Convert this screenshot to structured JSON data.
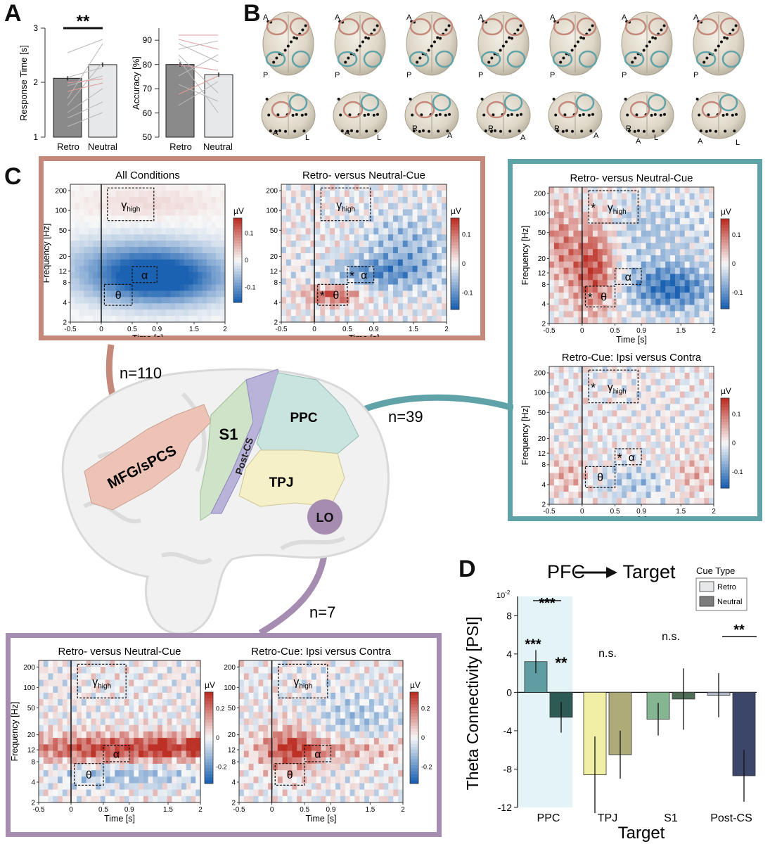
{
  "panel_labels": {
    "a": "A",
    "b": "B",
    "c": "C",
    "d": "D"
  },
  "colors": {
    "frontal": "#c4897b",
    "parietal": "#5fa3a8",
    "lo": "#a58cb0",
    "retro_bar": "#8a8a8a",
    "neutral_bar": "#e6e8ea"
  },
  "panel_a": {
    "rt": {
      "ylabel": "Response Time [s]",
      "yticks": [
        "1",
        "2",
        "3"
      ],
      "categories": [
        "Retro",
        "Neutral"
      ],
      "significance": "**"
    },
    "acc": {
      "ylabel": "Accuracy [%]",
      "yticks": [
        "50",
        "60",
        "70",
        "80",
        "90"
      ],
      "categories": [
        "Retro",
        "Neutral"
      ]
    }
  },
  "panel_b": {
    "top_labels": [
      "A",
      "P",
      "A",
      "P",
      "A",
      "P",
      "A",
      "P",
      "A",
      "P",
      "A",
      "P",
      "A",
      "P"
    ],
    "bottom_labels": [
      "A",
      "L",
      "A",
      "L",
      "R",
      "A",
      "R",
      "A",
      "R",
      "A",
      "R",
      "A",
      "L",
      "A",
      "L"
    ]
  },
  "tf_common": {
    "ylabel": "Frequency [Hz]",
    "xlabel": "Time [s]",
    "yticks": [
      "200",
      "100",
      "50",
      "20",
      "12",
      "8",
      "4",
      "2"
    ],
    "xticks": [
      "-0.5",
      "0",
      "0.5",
      "0.9",
      "1.5",
      "2"
    ],
    "unit": "µV",
    "cbar_ticks_01": [
      "0.1",
      "0",
      "-0.1"
    ],
    "cbar_ticks_02": [
      "0.2",
      "0",
      "-0.2"
    ],
    "gamma": "γ",
    "gamma_sub": "high",
    "alpha": "α",
    "theta": "θ",
    "star": "*"
  },
  "panel_c": {
    "frontal": {
      "n_label": "n=110",
      "all_title": "All Conditions",
      "diff_title": "Retro- versus Neutral-Cue"
    },
    "parietal": {
      "n_label": "n=39",
      "diff_title": "Retro- versus Neutral-Cue",
      "ipsi_title": "Retro-Cue: Ipsi versus Contra"
    },
    "lo": {
      "n_label": "n=7",
      "diff_title": "Retro- versus Neutral-Cue",
      "ipsi_title": "Retro-Cue: Ipsi versus Contra"
    },
    "brain_regions": {
      "mfg": "MFG/sPCS",
      "s1": "S1",
      "postcs": "Post-CS",
      "ppc": "PPC",
      "tpj": "TPJ",
      "lo": "LO"
    }
  },
  "chart_data": [
    {
      "type": "bar",
      "title": "",
      "xlabel": "",
      "ylabel": "Response Time [s]",
      "categories": [
        "Retro",
        "Neutral"
      ],
      "values": [
        2.08,
        2.33
      ],
      "ylim": [
        1,
        3
      ]
    },
    {
      "type": "bar",
      "title": "",
      "xlabel": "",
      "ylabel": "Accuracy [%]",
      "categories": [
        "Retro",
        "Neutral"
      ],
      "values": [
        80,
        75.8
      ],
      "ylim": [
        50,
        95
      ]
    },
    {
      "type": "bar",
      "title": "PFC → Target",
      "title_left": "PFC",
      "title_right": "Target",
      "xlabel": "Target",
      "ylabel": "Theta Connectivity [PSI]",
      "scale_label": "10",
      "scale_exp": "-2",
      "ylim": [
        -12,
        10
      ],
      "yticks": [
        "8",
        "4",
        "0",
        "-4",
        "-8",
        "-12"
      ],
      "categories": [
        "PPC",
        "TPJ",
        "S1",
        "Post-CS"
      ],
      "legend_title": "Cue Type",
      "series": [
        {
          "name": "Retro",
          "values": [
            3.2,
            -8.6,
            -2.8,
            -0.3
          ],
          "errors": [
            1.2,
            4.0,
            1.7,
            2.3
          ]
        },
        {
          "name": "Neutral",
          "values": [
            -2.6,
            -6.5,
            -0.7,
            -8.7
          ],
          "errors": [
            1.6,
            2.5,
            3.2,
            2.7
          ]
        }
      ],
      "annotations": {
        "ppc_retro": "***",
        "ppc_between": "***",
        "ppc_neutral": "**",
        "tpj": "n.s.",
        "s1": "n.s.",
        "postcs": "**"
      }
    }
  ]
}
